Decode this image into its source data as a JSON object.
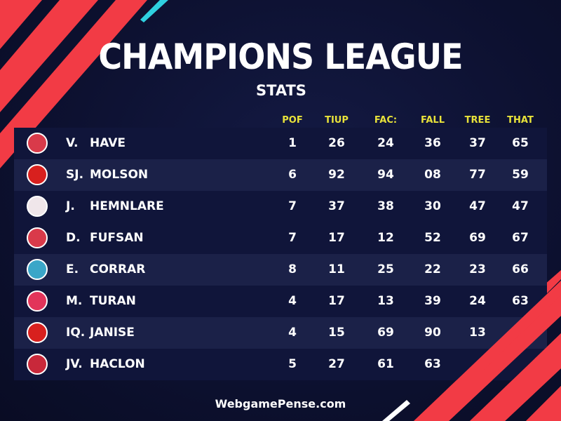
{
  "header": {
    "title": "CHAMPIONS LEAGUE",
    "subtitle": "STATS"
  },
  "columns": [
    "POF",
    "TIUP",
    "FAC:",
    "FALL",
    "TREE",
    "THAT"
  ],
  "rows": [
    {
      "initial": "V.",
      "name": "HAVE",
      "badge": "#d93a4a",
      "values": [
        "1",
        "26",
        "24",
        "36",
        "37",
        "65"
      ]
    },
    {
      "initial": "SJ.",
      "name": "MOLSON",
      "badge": "#d8201e",
      "values": [
        "6",
        "92",
        "94",
        "08",
        "77",
        "59"
      ]
    },
    {
      "initial": "J.",
      "name": "HEMNLARE",
      "badge": "#f0e6ea",
      "values": [
        "7",
        "37",
        "38",
        "30",
        "47",
        "47"
      ]
    },
    {
      "initial": "D.",
      "name": "FUFSAN",
      "badge": "#d93a4a",
      "values": [
        "7",
        "17",
        "12",
        "52",
        "69",
        "67"
      ]
    },
    {
      "initial": "E.",
      "name": "CORRAR",
      "badge": "#3aa6c8",
      "values": [
        "8",
        "11",
        "25",
        "22",
        "23",
        "66"
      ]
    },
    {
      "initial": "M.",
      "name": "TURAN",
      "badge": "#e2345a",
      "values": [
        "4",
        "17",
        "13",
        "39",
        "24",
        "63"
      ]
    },
    {
      "initial": "IQ.",
      "name": "JANISE",
      "badge": "#d8201e",
      "values": [
        "4",
        "15",
        "69",
        "90",
        "13",
        ""
      ]
    },
    {
      "initial": "JV.",
      "name": "HACLON",
      "badge": "#c8283a",
      "values": [
        "5",
        "27",
        "61",
        "63",
        "",
        ""
      ]
    }
  ],
  "footer": "WebgamePense.com",
  "colors": {
    "background": "#0d1131",
    "stripe": "#f23b45",
    "accent": "#2fd0e0",
    "header": "#e8e23a"
  }
}
